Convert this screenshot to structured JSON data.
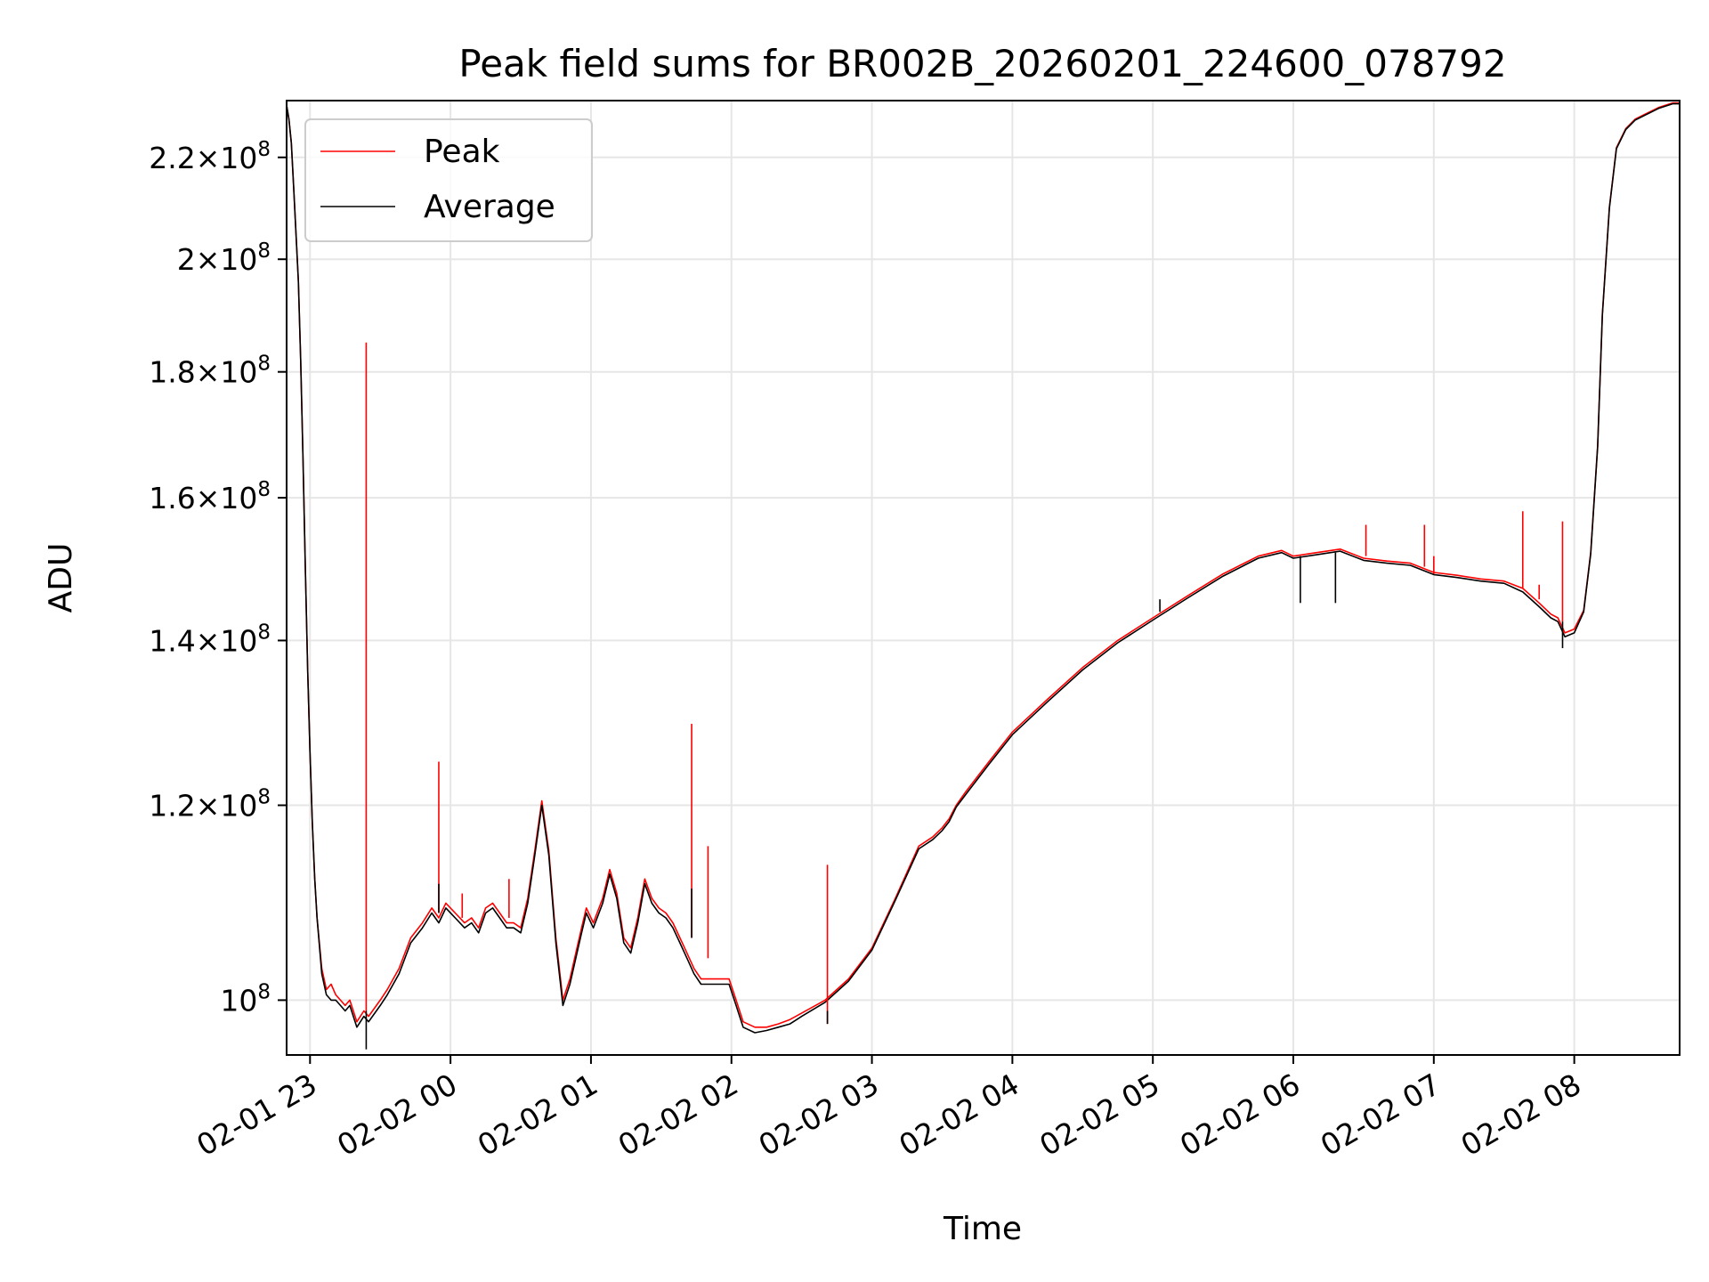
{
  "chart_data": {
    "type": "line",
    "title": "Peak field sums for BR002B_20260201_224600_078792",
    "xlabel": "Time",
    "ylabel": "ADU",
    "yscale": "log",
    "xlim": [
      "02-01 22:50",
      "02-02 08:45"
    ],
    "ylim": [
      95000000,
      232000000
    ],
    "grid": true,
    "legend_position": "top-left",
    "x_ticks": [
      "02-01 23",
      "02-02 00",
      "02-02 01",
      "02-02 02",
      "02-02 03",
      "02-02 04",
      "02-02 05",
      "02-02 06",
      "02-02 07",
      "02-02 08"
    ],
    "y_ticks": [
      {
        "value": 100000000,
        "mantissa": "",
        "exponent": "8"
      },
      {
        "value": 120000000,
        "mantissa": "1.2",
        "exponent": "8"
      },
      {
        "value": 140000000,
        "mantissa": "1.4",
        "exponent": "8"
      },
      {
        "value": 160000000,
        "mantissa": "1.6",
        "exponent": "8"
      },
      {
        "value": 180000000,
        "mantissa": "1.8",
        "exponent": "8"
      },
      {
        "value": 200000000,
        "mantissa": "2",
        "exponent": "8"
      },
      {
        "value": 220000000,
        "mantissa": "2.2",
        "exponent": "8"
      }
    ],
    "series": [
      {
        "name": "Peak",
        "color": "#ff0000",
        "x": [
          "02-01 22:50",
          "02-01 22:51",
          "02-01 22:52",
          "02-01 22:53",
          "02-01 22:54",
          "02-01 22:55",
          "02-01 22:56",
          "02-01 22:57",
          "02-01 22:58",
          "02-01 22:59",
          "02-01 23:00",
          "02-01 23:01",
          "02-01 23:02",
          "02-01 23:03",
          "02-01 23:05",
          "02-01 23:07",
          "02-01 23:09",
          "02-01 23:11",
          "02-01 23:13",
          "02-01 23:15",
          "02-01 23:17",
          "02-01 23:20",
          "02-01 23:23",
          "02-01 23:25",
          "02-01 23:30",
          "02-01 23:33",
          "02-01 23:38",
          "02-01 23:43",
          "02-01 23:48",
          "02-01 23:52",
          "02-01 23:55",
          "02-01 23:58",
          "02-02 00:02",
          "02-02 00:06",
          "02-02 00:09",
          "02-02 00:12",
          "02-02 00:15",
          "02-02 00:18",
          "02-02 00:21",
          "02-02 00:24",
          "02-02 00:27",
          "02-02 00:30",
          "02-02 00:33",
          "02-02 00:36",
          "02-02 00:39",
          "02-02 00:42",
          "02-02 00:45",
          "02-02 00:48",
          "02-02 00:51",
          "02-02 00:54",
          "02-02 00:56",
          "02-02 00:58",
          "02-02 01:01",
          "02-02 01:05",
          "02-02 01:08",
          "02-02 01:11",
          "02-02 01:14",
          "02-02 01:17",
          "02-02 01:20",
          "02-02 01:23",
          "02-02 01:26",
          "02-02 01:29",
          "02-02 01:32",
          "02-02 01:35",
          "02-02 01:38",
          "02-02 01:41",
          "02-02 01:44",
          "02-02 01:47",
          "02-02 01:50",
          "02-02 01:53",
          "02-02 01:56",
          "02-02 01:59",
          "02-02 02:02",
          "02-02 02:05",
          "02-02 02:10",
          "02-02 02:15",
          "02-02 02:20",
          "02-02 02:25",
          "02-02 02:30",
          "02-02 02:40",
          "02-02 02:50",
          "02-02 03:00",
          "02-02 03:10",
          "02-02 03:20",
          "02-02 03:26",
          "02-02 03:30",
          "02-02 03:33",
          "02-02 03:36",
          "02-02 03:40",
          "02-02 03:50",
          "02-02 04:00",
          "02-02 04:15",
          "02-02 04:30",
          "02-02 04:45",
          "02-02 05:00",
          "02-02 05:15",
          "02-02 05:30",
          "02-02 05:45",
          "02-02 05:55",
          "02-02 06:00",
          "02-02 06:10",
          "02-02 06:20",
          "02-02 06:30",
          "02-02 06:40",
          "02-02 06:50",
          "02-02 07:00",
          "02-02 07:10",
          "02-02 07:20",
          "02-02 07:30",
          "02-02 07:38",
          "02-02 07:45",
          "02-02 07:50",
          "02-02 07:53",
          "02-02 07:56",
          "02-02 08:00",
          "02-02 08:04",
          "02-02 08:07",
          "02-02 08:10",
          "02-02 08:12",
          "02-02 08:15",
          "02-02 08:18",
          "02-02 08:22",
          "02-02 08:26",
          "02-02 08:30",
          "02-02 08:36",
          "02-02 08:42",
          "02-02 08:45"
        ],
        "y": [
          231000000,
          228000000,
          223000000,
          214000000,
          205000000,
          196000000,
          182000000,
          166000000,
          150000000,
          136000000,
          126000000,
          118000000,
          112000000,
          108000000,
          103000000,
          101000000,
          101500000,
          100500000,
          100000000,
          99500000,
          100000000,
          98000000,
          99000000,
          98500000,
          100000000,
          101000000,
          103000000,
          106000000,
          107500000,
          109000000,
          108000000,
          109500000,
          108500000,
          107500000,
          108000000,
          107000000,
          109000000,
          109500000,
          108500000,
          107500000,
          107500000,
          107000000,
          110000000,
          115000000,
          120500000,
          115000000,
          106000000,
          100000000,
          102000000,
          105000000,
          107000000,
          109000000,
          107500000,
          110000000,
          113000000,
          110500000,
          106000000,
          105000000,
          108000000,
          112000000,
          110000000,
          109000000,
          108500000,
          107500000,
          106000000,
          104500000,
          103000000,
          102000000,
          102000000,
          102000000,
          102000000,
          102000000,
          100000000,
          98000000,
          97500000,
          97500000,
          97800000,
          98200000,
          98800000,
          100000000,
          102000000,
          105000000,
          110000000,
          115500000,
          116500000,
          117500000,
          118500000,
          120000000,
          121500000,
          125000000,
          128500000,
          132500000,
          136500000,
          140000000,
          143000000,
          146000000,
          149000000,
          151500000,
          152300000,
          151500000,
          152000000,
          152500000,
          151200000,
          150800000,
          150500000,
          149200000,
          148800000,
          148300000,
          148000000,
          147000000,
          145000000,
          143500000,
          143000000,
          141000000,
          141500000,
          144000000,
          152000000,
          168000000,
          190000000,
          210000000,
          222000000,
          226000000,
          228000000,
          229000000,
          230500000,
          231500000,
          231500000
        ]
      },
      {
        "name": "Average",
        "color": "#000000",
        "x": [
          "02-01 22:50",
          "02-01 22:51",
          "02-01 22:52",
          "02-01 22:53",
          "02-01 22:54",
          "02-01 22:55",
          "02-01 22:56",
          "02-01 22:57",
          "02-01 22:58",
          "02-01 22:59",
          "02-01 23:00",
          "02-01 23:01",
          "02-01 23:02",
          "02-01 23:03",
          "02-01 23:05",
          "02-01 23:07",
          "02-01 23:09",
          "02-01 23:11",
          "02-01 23:13",
          "02-01 23:15",
          "02-01 23:17",
          "02-01 23:20",
          "02-01 23:23",
          "02-01 23:25",
          "02-01 23:30",
          "02-01 23:33",
          "02-01 23:38",
          "02-01 23:43",
          "02-01 23:48",
          "02-01 23:52",
          "02-01 23:55",
          "02-01 23:58",
          "02-02 00:02",
          "02-02 00:06",
          "02-02 00:09",
          "02-02 00:12",
          "02-02 00:15",
          "02-02 00:18",
          "02-02 00:21",
          "02-02 00:24",
          "02-02 00:27",
          "02-02 00:30",
          "02-02 00:33",
          "02-02 00:36",
          "02-02 00:39",
          "02-02 00:42",
          "02-02 00:45",
          "02-02 00:48",
          "02-02 00:51",
          "02-02 00:54",
          "02-02 00:56",
          "02-02 00:58",
          "02-02 01:01",
          "02-02 01:05",
          "02-02 01:08",
          "02-02 01:11",
          "02-02 01:14",
          "02-02 01:17",
          "02-02 01:20",
          "02-02 01:23",
          "02-02 01:26",
          "02-02 01:29",
          "02-02 01:32",
          "02-02 01:35",
          "02-02 01:38",
          "02-02 01:41",
          "02-02 01:44",
          "02-02 01:47",
          "02-02 01:50",
          "02-02 01:53",
          "02-02 01:56",
          "02-02 01:59",
          "02-02 02:02",
          "02-02 02:05",
          "02-02 02:10",
          "02-02 02:15",
          "02-02 02:20",
          "02-02 02:25",
          "02-02 02:30",
          "02-02 02:40",
          "02-02 02:50",
          "02-02 03:00",
          "02-02 03:10",
          "02-02 03:20",
          "02-02 03:26",
          "02-02 03:30",
          "02-02 03:33",
          "02-02 03:36",
          "02-02 03:40",
          "02-02 03:50",
          "02-02 04:00",
          "02-02 04:15",
          "02-02 04:30",
          "02-02 04:45",
          "02-02 05:00",
          "02-02 05:15",
          "02-02 05:30",
          "02-02 05:45",
          "02-02 05:55",
          "02-02 06:00",
          "02-02 06:10",
          "02-02 06:20",
          "02-02 06:30",
          "02-02 06:40",
          "02-02 06:50",
          "02-02 07:00",
          "02-02 07:10",
          "02-02 07:20",
          "02-02 07:30",
          "02-02 07:38",
          "02-02 07:45",
          "02-02 07:50",
          "02-02 07:53",
          "02-02 07:56",
          "02-02 08:00",
          "02-02 08:04",
          "02-02 08:07",
          "02-02 08:10",
          "02-02 08:12",
          "02-02 08:15",
          "02-02 08:18",
          "02-02 08:22",
          "02-02 08:26",
          "02-02 08:30",
          "02-02 08:36",
          "02-02 08:42",
          "02-02 08:45"
        ],
        "y": [
          231000000,
          228000000,
          223000000,
          214000000,
          205000000,
          196000000,
          182000000,
          166000000,
          150000000,
          136000000,
          126000000,
          118000000,
          112000000,
          108000000,
          102500000,
          100500000,
          100000000,
          100000000,
          99500000,
          99000000,
          99500000,
          97500000,
          98500000,
          98000000,
          99500000,
          100500000,
          102500000,
          105500000,
          107000000,
          108500000,
          107500000,
          109000000,
          108000000,
          107000000,
          107500000,
          106500000,
          108500000,
          109000000,
          108000000,
          107000000,
          107000000,
          106500000,
          109500000,
          114500000,
          120000000,
          114500000,
          105500000,
          99500000,
          101500000,
          104500000,
          106500000,
          108500000,
          107000000,
          109500000,
          112500000,
          110000000,
          105500000,
          104500000,
          107500000,
          111500000,
          109500000,
          108500000,
          108000000,
          107000000,
          105500000,
          104000000,
          102500000,
          101500000,
          101500000,
          101500000,
          101500000,
          101500000,
          99500000,
          97500000,
          97000000,
          97200000,
          97500000,
          97800000,
          98500000,
          99800000,
          101800000,
          104800000,
          109800000,
          115200000,
          116200000,
          117200000,
          118200000,
          119800000,
          121200000,
          124700000,
          128200000,
          132200000,
          136200000,
          139700000,
          142700000,
          145700000,
          148700000,
          151200000,
          152000000,
          151200000,
          151700000,
          152200000,
          150900000,
          150500000,
          150200000,
          148900000,
          148500000,
          148000000,
          147700000,
          146500000,
          144500000,
          143000000,
          142500000,
          140500000,
          141000000,
          143800000,
          151800000,
          167800000,
          189800000,
          209800000,
          221800000,
          225800000,
          227800000,
          228800000,
          230300000,
          231300000,
          231300000
        ]
      }
    ],
    "spikes": [
      {
        "series": "Peak",
        "x": "02-01 23:24",
        "from": 99000000,
        "to": 185000000
      },
      {
        "series": "Average",
        "x": "02-01 23:24",
        "from": 99000000,
        "to": 95500000
      },
      {
        "series": "Peak",
        "x": "02-01 23:55",
        "from": 108500000,
        "to": 125000000
      },
      {
        "series": "Average",
        "x": "02-01 23:55",
        "from": 108500000,
        "to": 111500000
      },
      {
        "series": "Peak",
        "x": "02-02 00:05",
        "from": 108000000,
        "to": 110500000
      },
      {
        "series": "Peak",
        "x": "02-02 00:25",
        "from": 108000000,
        "to": 112000000
      },
      {
        "series": "Peak",
        "x": "02-02 01:43",
        "from": 106000000,
        "to": 129500000
      },
      {
        "series": "Average",
        "x": "02-02 01:43",
        "from": 106000000,
        "to": 111000000
      },
      {
        "series": "Peak",
        "x": "02-02 01:50",
        "from": 104000000,
        "to": 115500000
      },
      {
        "series": "Peak",
        "x": "02-02 02:41",
        "from": 97800000,
        "to": 113500000
      },
      {
        "series": "Average",
        "x": "02-02 02:41",
        "from": 97800000,
        "to": 99000000
      },
      {
        "series": "Average",
        "x": "02-02 05:03",
        "from": 145500000,
        "to": 143800000
      },
      {
        "series": "Average",
        "x": "02-02 06:03",
        "from": 151500000,
        "to": 145000000
      },
      {
        "series": "Average",
        "x": "02-02 06:18",
        "from": 152000000,
        "to": 145000000
      },
      {
        "series": "Peak",
        "x": "02-02 06:31",
        "from": 151500000,
        "to": 156000000
      },
      {
        "series": "Peak",
        "x": "02-02 06:56",
        "from": 150000000,
        "to": 156000000
      },
      {
        "series": "Peak",
        "x": "02-02 07:00",
        "from": 149000000,
        "to": 151500000
      },
      {
        "series": "Peak",
        "x": "02-02 07:38",
        "from": 147000000,
        "to": 158000000
      },
      {
        "series": "Peak",
        "x": "02-02 07:45",
        "from": 145500000,
        "to": 147500000
      },
      {
        "series": "Peak",
        "x": "02-02 07:55",
        "from": 142500000,
        "to": 156500000
      },
      {
        "series": "Average",
        "x": "02-02 07:55",
        "from": 142500000,
        "to": 139000000
      }
    ]
  }
}
